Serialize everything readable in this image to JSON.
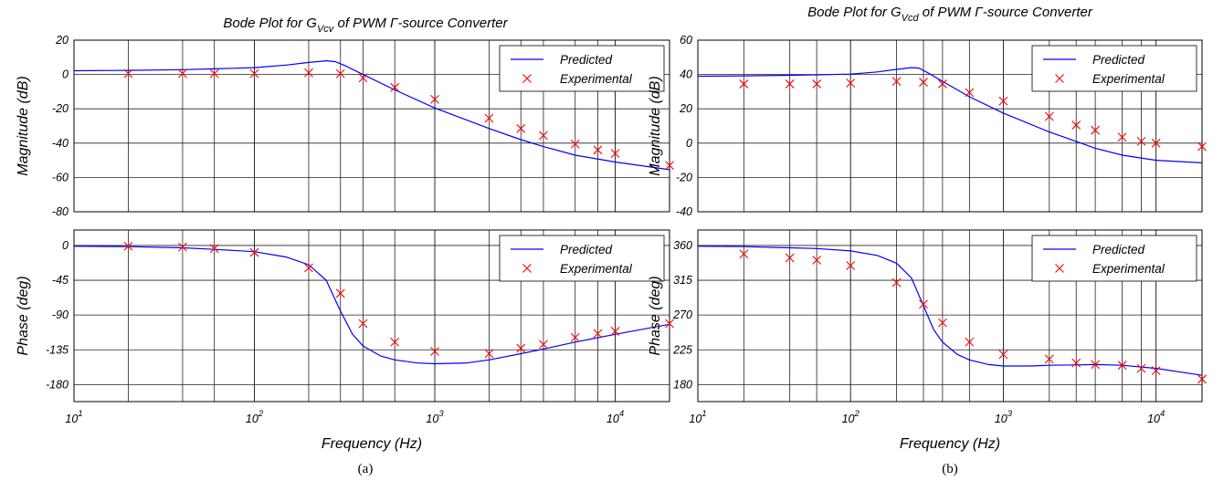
{
  "colors": {
    "predicted": "#0000ff",
    "experimental": "#ff0000",
    "grid": "#000000"
  },
  "chart_data": [
    {
      "id": "a",
      "type": "line",
      "caption": "(a)",
      "title_parts": {
        "pre": "Bode Plot for G",
        "sub": "Vcv",
        "post": " of PWM Γ-source Converter"
      },
      "xlabel": "Frequency (Hz)",
      "xscale": "log",
      "xlim": [
        10,
        20000
      ],
      "xticks": [
        {
          "value": 10,
          "base": "10",
          "exp": "1"
        },
        {
          "value": 100,
          "base": "10",
          "exp": "2"
        },
        {
          "value": 1000,
          "base": "10",
          "exp": "3"
        },
        {
          "value": 10000,
          "base": "10",
          "exp": "4"
        }
      ],
      "grid": true,
      "vlines": [
        20,
        40,
        60,
        100,
        200,
        300,
        400,
        600,
        1000,
        2000,
        3000,
        4000,
        6000,
        8000,
        10000,
        20000
      ],
      "panels": [
        {
          "name": "magnitude",
          "ylabel": "Magnitude (dB)",
          "ylim": [
            -80,
            20
          ],
          "yticks": [
            20,
            0,
            -20,
            -40,
            -60,
            -80
          ],
          "legend": {
            "position": "top-right",
            "predicted_label": "Predicted",
            "experimental_label": "Experimental"
          },
          "series": [
            {
              "name": "Predicted",
              "style": "line",
              "x": [
                10,
                20,
                40,
                60,
                100,
                150,
                200,
                250,
                280,
                320,
                400,
                600,
                1000,
                2000,
                3000,
                4000,
                6000,
                10000,
                20000
              ],
              "y": [
                2.2,
                2.4,
                2.8,
                3.3,
                4,
                5.5,
                7,
                8,
                7.5,
                5,
                0,
                -9,
                -19.5,
                -31.5,
                -38,
                -42,
                -47,
                -51,
                -55.5
              ]
            },
            {
              "name": "Experimental",
              "style": "markers-x",
              "x": [
                20,
                40,
                60,
                100,
                200,
                300,
                400,
                600,
                1000,
                2000,
                3000,
                4000,
                6000,
                8000,
                10000,
                20000
              ],
              "y": [
                0.5,
                0.5,
                0.5,
                0.5,
                1,
                0.5,
                -2,
                -7.5,
                -14.5,
                -25.5,
                -31.5,
                -35.5,
                -40.5,
                -44,
                -46,
                -53
              ]
            }
          ]
        },
        {
          "name": "phase",
          "ylabel": "Phase (deg)",
          "ylim": [
            -202,
            20
          ],
          "yticks": [
            0,
            -45,
            -90,
            -135,
            -180
          ],
          "legend": {
            "position": "top-right",
            "predicted_label": "Predicted",
            "experimental_label": "Experimental"
          },
          "series": [
            {
              "name": "Predicted",
              "style": "line",
              "x": [
                10,
                20,
                40,
                60,
                100,
                150,
                200,
                250,
                300,
                350,
                400,
                500,
                600,
                800,
                1000,
                1500,
                2000,
                3000,
                4000,
                6000,
                10000,
                20000
              ],
              "y": [
                -1,
                -1.5,
                -3,
                -5,
                -8,
                -15,
                -25,
                -45,
                -85,
                -115,
                -130,
                -143,
                -148,
                -152,
                -153,
                -152,
                -148,
                -140,
                -134,
                -125,
                -115,
                -102
              ]
            },
            {
              "name": "Experimental",
              "style": "markers-x",
              "x": [
                20,
                40,
                60,
                100,
                200,
                300,
                400,
                600,
                1000,
                2000,
                3000,
                4000,
                6000,
                8000,
                10000,
                20000
              ],
              "y": [
                -1,
                -2,
                -4,
                -9,
                -29,
                -62,
                -101,
                -125,
                -137,
                -140,
                -133,
                -128,
                -119,
                -114,
                -111,
                -101
              ]
            }
          ]
        }
      ]
    },
    {
      "id": "b",
      "type": "line",
      "caption": "(b)",
      "title_parts": {
        "pre": "Bode Plot for G",
        "sub": "Vcd",
        "post": " of PWM Γ-source Converter"
      },
      "xlabel": "Frequency (Hz)",
      "xscale": "log",
      "xlim": [
        10,
        20000
      ],
      "xticks": [
        {
          "value": 10,
          "base": "10",
          "exp": "1"
        },
        {
          "value": 100,
          "base": "10",
          "exp": "2"
        },
        {
          "value": 1000,
          "base": "10",
          "exp": "3"
        },
        {
          "value": 10000,
          "base": "10",
          "exp": "4"
        }
      ],
      "grid": true,
      "vlines": [
        20,
        40,
        60,
        100,
        200,
        300,
        400,
        600,
        1000,
        2000,
        3000,
        4000,
        6000,
        8000,
        10000,
        20000
      ],
      "panels": [
        {
          "name": "magnitude",
          "ylabel": "Magnitude (dB)",
          "ylim": [
            -40,
            60
          ],
          "yticks": [
            60,
            40,
            20,
            0,
            -20,
            -40
          ],
          "legend": {
            "position": "top-right",
            "predicted_label": "Predicted",
            "experimental_label": "Experimental"
          },
          "series": [
            {
              "name": "Predicted",
              "style": "line",
              "x": [
                10,
                20,
                40,
                60,
                100,
                150,
                200,
                250,
                280,
                320,
                400,
                600,
                1000,
                2000,
                3000,
                4000,
                6000,
                10000,
                20000
              ],
              "y": [
                39,
                39.2,
                39.5,
                39.8,
                40.2,
                41.5,
                43,
                44,
                43.7,
                41,
                36,
                27,
                17.5,
                6.5,
                1,
                -3,
                -7,
                -10,
                -11.5
              ]
            },
            {
              "name": "Experimental",
              "style": "markers-x",
              "x": [
                20,
                40,
                60,
                100,
                200,
                300,
                400,
                600,
                1000,
                2000,
                3000,
                4000,
                6000,
                8000,
                10000,
                20000
              ],
              "y": [
                34.5,
                34.5,
                34.5,
                35,
                36,
                35.5,
                34.5,
                29.5,
                24.5,
                15.5,
                10.5,
                7.5,
                3.5,
                1,
                0,
                -2
              ]
            }
          ]
        },
        {
          "name": "phase",
          "ylabel": "Phase (deg)",
          "ylim": [
            158,
            380
          ],
          "yticks": [
            360,
            315,
            270,
            225,
            180
          ],
          "legend": {
            "position": "top-right",
            "predicted_label": "Predicted",
            "experimental_label": "Experimental"
          },
          "series": [
            {
              "name": "Predicted",
              "style": "line",
              "x": [
                10,
                20,
                40,
                60,
                100,
                150,
                200,
                250,
                300,
                350,
                400,
                500,
                600,
                800,
                1000,
                1500,
                2000,
                3000,
                4000,
                6000,
                10000,
                20000
              ],
              "y": [
                359,
                358.5,
                357,
                356,
                353,
                347,
                337,
                318,
                282,
                251,
                235,
                219,
                212,
                206,
                204,
                204,
                205,
                205.5,
                206,
                205,
                201,
                192
              ]
            },
            {
              "name": "Experimental",
              "style": "markers-x",
              "x": [
                20,
                40,
                60,
                100,
                200,
                300,
                400,
                600,
                1000,
                2000,
                3000,
                4000,
                6000,
                8000,
                10000,
                20000
              ],
              "y": [
                349,
                344,
                341,
                334,
                312,
                284,
                260,
                235,
                219,
                213,
                208,
                206,
                205,
                201,
                198,
                187
              ]
            }
          ]
        }
      ]
    }
  ]
}
